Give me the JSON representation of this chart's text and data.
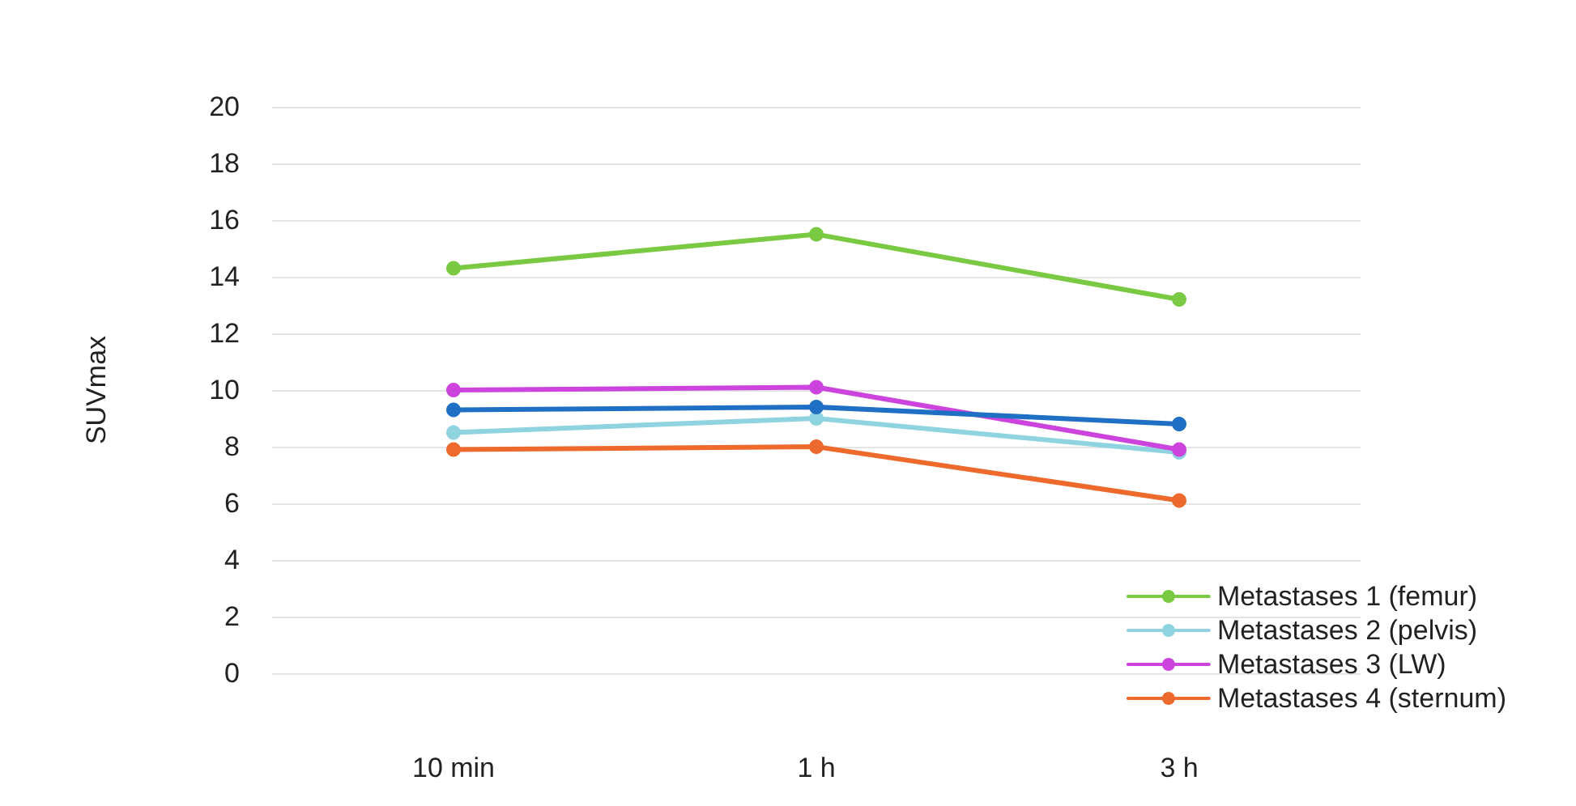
{
  "chart_data": {
    "type": "line",
    "ylabel": "SUVmax",
    "categories": [
      "10 min",
      "1 h",
      "3 h"
    ],
    "ylim": [
      0,
      20
    ],
    "yticks": [
      0,
      2,
      4,
      6,
      8,
      10,
      12,
      14,
      16,
      18,
      20
    ],
    "series": [
      {
        "name": "Metastases 1 (femur)",
        "color": "#7ac943",
        "values": [
          14.3,
          15.5,
          13.2
        ]
      },
      {
        "name": "Metastases 2 (pelvis)",
        "color": "#8fd3e0",
        "values": [
          8.5,
          9.0,
          7.8
        ]
      },
      {
        "name": "Metastases 3 (LW)",
        "color": "#cc44dd",
        "values": [
          10.0,
          10.1,
          7.9
        ]
      },
      {
        "name": "Metastases 4 (sternum)",
        "color": "#ee6a2c",
        "values": [
          7.9,
          8.0,
          6.1
        ]
      },
      {
        "color": "#1f6fc5",
        "values": [
          9.3,
          9.4,
          8.8
        ]
      }
    ],
    "grid": "y",
    "legend": "bottom right",
    "marker": "circle",
    "line_style": "solid"
  }
}
